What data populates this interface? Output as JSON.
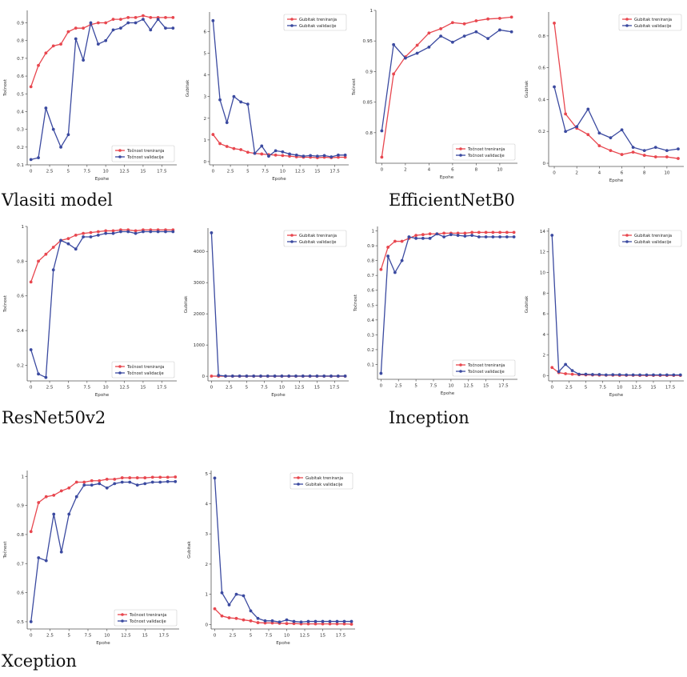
{
  "colors": {
    "train": "#e8474f",
    "val": "#3b4aa0",
    "axis": "#555555"
  },
  "models": [
    {
      "name": "Vlasiti model"
    },
    {
      "name": "EfficientNetB0"
    },
    {
      "name": "ResNet50v2"
    },
    {
      "name": "Inception"
    },
    {
      "name": "Xception"
    }
  ],
  "chart_data": [
    {
      "type": "line",
      "model": "Vlasiti model",
      "xlabel": "Epohe",
      "ylabel": "Točnost",
      "xlim": [
        -0.5,
        19.5
      ],
      "ylim": [
        0.1,
        0.97
      ],
      "xticks": [
        0,
        2.5,
        5,
        7.5,
        10,
        12.5,
        15,
        17.5
      ],
      "yticks": [
        0.1,
        0.2,
        0.3,
        0.4,
        0.5,
        0.6,
        0.7,
        0.8,
        0.9
      ],
      "grid": false,
      "legend": "lower-right",
      "x": [
        0,
        1,
        2,
        3,
        4,
        5,
        6,
        7,
        8,
        9,
        10,
        11,
        12,
        13,
        14,
        15,
        16,
        17,
        18,
        19
      ],
      "series": [
        {
          "name": "Točnost treniranja",
          "values": [
            0.54,
            0.66,
            0.73,
            0.77,
            0.78,
            0.85,
            0.87,
            0.87,
            0.89,
            0.9,
            0.9,
            0.92,
            0.92,
            0.93,
            0.93,
            0.94,
            0.93,
            0.93,
            0.93,
            0.93
          ]
        },
        {
          "name": "Točnost validacije",
          "values": [
            0.13,
            0.14,
            0.42,
            0.3,
            0.2,
            0.27,
            0.81,
            0.69,
            0.9,
            0.78,
            0.8,
            0.86,
            0.87,
            0.9,
            0.9,
            0.92,
            0.86,
            0.92,
            0.87,
            0.87
          ]
        }
      ]
    },
    {
      "type": "line",
      "model": "Vlasiti model",
      "xlabel": "Epohe",
      "ylabel": "Gubitak",
      "xlim": [
        -0.5,
        19.5
      ],
      "ylim": [
        -0.15,
        6.9
      ],
      "xticks": [
        0,
        2.5,
        5,
        7.5,
        10,
        12.5,
        15,
        17.5
      ],
      "yticks": [
        0,
        1,
        2,
        3,
        4,
        5,
        6
      ],
      "grid": false,
      "legend": "upper-right",
      "x": [
        0,
        1,
        2,
        3,
        4,
        5,
        6,
        7,
        8,
        9,
        10,
        11,
        12,
        13,
        14,
        15,
        16,
        17,
        18,
        19
      ],
      "series": [
        {
          "name": "Gubitak treniranja",
          "values": [
            1.25,
            0.83,
            0.7,
            0.6,
            0.55,
            0.43,
            0.38,
            0.35,
            0.32,
            0.3,
            0.28,
            0.25,
            0.22,
            0.2,
            0.2,
            0.18,
            0.2,
            0.18,
            0.2,
            0.2
          ]
        },
        {
          "name": "Gubitak validacije",
          "values": [
            6.5,
            2.85,
            1.8,
            3.0,
            2.75,
            2.65,
            0.38,
            0.72,
            0.25,
            0.5,
            0.45,
            0.35,
            0.3,
            0.25,
            0.28,
            0.25,
            0.28,
            0.22,
            0.3,
            0.3
          ]
        }
      ]
    },
    {
      "type": "line",
      "model": "EfficientNetB0",
      "xlabel": "Epohe",
      "ylabel": "Točnost",
      "xlim": [
        -0.5,
        11.5
      ],
      "ylim": [
        0.75,
        1.0
      ],
      "xticks": [
        0,
        2,
        4,
        6,
        8,
        10
      ],
      "yticks": [
        0.8,
        0.85,
        0.9,
        0.95,
        1.0
      ],
      "grid": false,
      "legend": "lower-right",
      "x": [
        0,
        1,
        2,
        3,
        4,
        5,
        6,
        7,
        8,
        9,
        10,
        11
      ],
      "series": [
        {
          "name": "Točnost treniranja",
          "values": [
            0.76,
            0.896,
            0.924,
            0.943,
            0.963,
            0.97,
            0.98,
            0.978,
            0.983,
            0.986,
            0.987,
            0.989
          ]
        },
        {
          "name": "Točnost validacije",
          "values": [
            0.803,
            0.944,
            0.922,
            0.93,
            0.94,
            0.958,
            0.948,
            0.958,
            0.965,
            0.954,
            0.968,
            0.965
          ]
        }
      ]
    },
    {
      "type": "line",
      "model": "EfficientNetB0",
      "xlabel": "Epohe",
      "ylabel": "Gubitak",
      "xlim": [
        -0.5,
        11.5
      ],
      "ylim": [
        -0.02,
        0.95
      ],
      "xticks": [
        0,
        2,
        4,
        6,
        8,
        10
      ],
      "yticks": [
        0,
        0.2,
        0.4,
        0.6,
        0.8
      ],
      "grid": false,
      "legend": "upper-right",
      "x": [
        0,
        1,
        2,
        3,
        4,
        5,
        6,
        7,
        8,
        9,
        10,
        11
      ],
      "series": [
        {
          "name": "Gubitak treniranja",
          "values": [
            0.88,
            0.31,
            0.22,
            0.18,
            0.11,
            0.08,
            0.055,
            0.07,
            0.05,
            0.04,
            0.04,
            0.03
          ]
        },
        {
          "name": "Gubitak validacije",
          "values": [
            0.48,
            0.2,
            0.23,
            0.34,
            0.19,
            0.16,
            0.21,
            0.1,
            0.08,
            0.1,
            0.08,
            0.09
          ]
        }
      ]
    },
    {
      "type": "line",
      "model": "ResNet50v2",
      "xlabel": "Epohe",
      "ylabel": "Točnost",
      "xlim": [
        -0.5,
        19.5
      ],
      "ylim": [
        0.11,
        1.0
      ],
      "xticks": [
        0,
        2.5,
        5,
        7.5,
        10,
        12.5,
        15,
        17.5
      ],
      "yticks": [
        0.2,
        0.4,
        0.6,
        0.8,
        1.0
      ],
      "grid": false,
      "legend": "lower-right",
      "x": [
        0,
        1,
        2,
        3,
        4,
        5,
        6,
        7,
        8,
        9,
        10,
        11,
        12,
        13,
        14,
        15,
        16,
        17,
        18,
        19
      ],
      "series": [
        {
          "name": "Točnost treniranja",
          "values": [
            0.68,
            0.8,
            0.84,
            0.88,
            0.92,
            0.93,
            0.95,
            0.96,
            0.965,
            0.97,
            0.975,
            0.975,
            0.98,
            0.98,
            0.975,
            0.98,
            0.98,
            0.98,
            0.98,
            0.98
          ]
        },
        {
          "name": "Točnost validacije",
          "values": [
            0.29,
            0.15,
            0.13,
            0.75,
            0.92,
            0.9,
            0.87,
            0.94,
            0.94,
            0.95,
            0.96,
            0.96,
            0.97,
            0.97,
            0.96,
            0.97,
            0.97,
            0.97,
            0.97,
            0.97
          ]
        }
      ]
    },
    {
      "type": "line",
      "model": "ResNet50v2",
      "xlabel": "Epohe",
      "ylabel": "Gubitak",
      "xlim": [
        -0.5,
        19.5
      ],
      "ylim": [
        -150,
        4750
      ],
      "xticks": [
        0,
        2.5,
        5,
        7.5,
        10,
        12.5,
        15,
        17.5
      ],
      "yticks": [
        0,
        1000,
        2000,
        3000,
        4000
      ],
      "grid": false,
      "legend": "upper-right",
      "x": [
        0,
        1,
        2,
        3,
        4,
        5,
        6,
        7,
        8,
        9,
        10,
        11,
        12,
        13,
        14,
        15,
        16,
        17,
        18,
        19
      ],
      "series": [
        {
          "name": "Gubitak treniranja",
          "values": [
            3,
            2,
            2,
            2,
            2,
            2,
            2,
            2,
            2,
            2,
            2,
            2,
            2,
            2,
            2,
            2,
            2,
            2,
            2,
            2
          ]
        },
        {
          "name": "Gubitak validacije",
          "values": [
            4600,
            30,
            5,
            5,
            5,
            5,
            5,
            5,
            5,
            5,
            5,
            5,
            5,
            5,
            5,
            5,
            5,
            5,
            5,
            5
          ]
        }
      ]
    },
    {
      "type": "line",
      "model": "Inception",
      "xlabel": "Epohe",
      "ylabel": "Točnost",
      "xlim": [
        -0.5,
        19.5
      ],
      "ylim": [
        0.0,
        1.03
      ],
      "xticks": [
        0,
        2.5,
        5,
        7.5,
        10,
        12.5,
        15,
        17.5
      ],
      "yticks": [
        0.1,
        0.2,
        0.3,
        0.4,
        0.5,
        0.6,
        0.7,
        0.8,
        0.9,
        1.0
      ],
      "grid": false,
      "legend": "lower-right",
      "x": [
        0,
        1,
        2,
        3,
        4,
        5,
        6,
        7,
        8,
        9,
        10,
        11,
        12,
        13,
        14,
        15,
        16,
        17,
        18,
        19
      ],
      "series": [
        {
          "name": "Točnost treniranja",
          "values": [
            0.74,
            0.89,
            0.93,
            0.93,
            0.95,
            0.97,
            0.975,
            0.98,
            0.98,
            0.985,
            0.985,
            0.985,
            0.985,
            0.99,
            0.99,
            0.99,
            0.99,
            0.99,
            0.99,
            0.99
          ]
        },
        {
          "name": "Točnost validacije",
          "values": [
            0.04,
            0.83,
            0.72,
            0.8,
            0.96,
            0.95,
            0.95,
            0.95,
            0.98,
            0.96,
            0.975,
            0.97,
            0.965,
            0.97,
            0.96,
            0.96,
            0.96,
            0.96,
            0.96,
            0.96
          ]
        }
      ]
    },
    {
      "type": "line",
      "model": "Inception",
      "xlabel": "Epohe",
      "ylabel": "Gubitak",
      "xlim": [
        -0.5,
        19.5
      ],
      "ylim": [
        -0.5,
        14.3
      ],
      "xticks": [
        0,
        2.5,
        5,
        7.5,
        10,
        12.5,
        15,
        17.5
      ],
      "yticks": [
        0,
        2,
        4,
        6,
        8,
        10,
        12,
        14
      ],
      "grid": false,
      "legend": "upper-right",
      "x": [
        0,
        1,
        2,
        3,
        4,
        5,
        6,
        7,
        8,
        9,
        10,
        11,
        12,
        13,
        14,
        15,
        16,
        17,
        18,
        19
      ],
      "series": [
        {
          "name": "Gubitak treniranja",
          "values": [
            0.8,
            0.3,
            0.2,
            0.15,
            0.1,
            0.08,
            0.07,
            0.06,
            0.05,
            0.05,
            0.04,
            0.04,
            0.04,
            0.03,
            0.03,
            0.03,
            0.03,
            0.03,
            0.03,
            0.03
          ]
        },
        {
          "name": "Gubitak validacije",
          "values": [
            13.6,
            0.4,
            1.1,
            0.5,
            0.15,
            0.15,
            0.12,
            0.12,
            0.08,
            0.1,
            0.1,
            0.08,
            0.08,
            0.08,
            0.08,
            0.08,
            0.08,
            0.08,
            0.08,
            0.08
          ]
        }
      ]
    },
    {
      "type": "line",
      "model": "Xception",
      "xlabel": "Epohe",
      "ylabel": "Točnost",
      "xlim": [
        -0.5,
        19.5
      ],
      "ylim": [
        0.475,
        1.02
      ],
      "xticks": [
        0,
        2.5,
        5,
        7.5,
        10,
        12.5,
        15,
        17.5
      ],
      "yticks": [
        0.5,
        0.6,
        0.7,
        0.8,
        0.9,
        1.0
      ],
      "grid": false,
      "legend": "lower-right",
      "x": [
        0,
        1,
        2,
        3,
        4,
        5,
        6,
        7,
        8,
        9,
        10,
        11,
        12,
        13,
        14,
        15,
        16,
        17,
        18,
        19
      ],
      "series": [
        {
          "name": "Točnost treniranja",
          "values": [
            0.81,
            0.91,
            0.93,
            0.935,
            0.95,
            0.96,
            0.98,
            0.98,
            0.985,
            0.985,
            0.99,
            0.99,
            0.995,
            0.995,
            0.995,
            0.995,
            0.997,
            0.997,
            0.997,
            0.998
          ]
        },
        {
          "name": "Točnost validacije",
          "values": [
            0.5,
            0.72,
            0.71,
            0.87,
            0.74,
            0.87,
            0.93,
            0.97,
            0.97,
            0.975,
            0.96,
            0.975,
            0.98,
            0.98,
            0.97,
            0.975,
            0.98,
            0.98,
            0.982,
            0.982
          ]
        }
      ]
    },
    {
      "type": "line",
      "model": "Xception",
      "xlabel": "Epohe",
      "ylabel": "Gubitak",
      "xlim": [
        -0.5,
        19.5
      ],
      "ylim": [
        -0.15,
        5.1
      ],
      "xticks": [
        0,
        2.5,
        5,
        7.5,
        10,
        12.5,
        15,
        17.5
      ],
      "yticks": [
        0,
        1,
        2,
        3,
        4,
        5
      ],
      "grid": false,
      "legend": "upper-right",
      "x": [
        0,
        1,
        2,
        3,
        4,
        5,
        6,
        7,
        8,
        9,
        10,
        11,
        12,
        13,
        14,
        15,
        16,
        17,
        18,
        19
      ],
      "series": [
        {
          "name": "Gubitak treniranja",
          "values": [
            0.52,
            0.28,
            0.22,
            0.2,
            0.15,
            0.12,
            0.06,
            0.05,
            0.05,
            0.04,
            0.03,
            0.03,
            0.02,
            0.02,
            0.02,
            0.02,
            0.02,
            0.02,
            0.02,
            0.01
          ]
        },
        {
          "name": "Gubitak validacije",
          "values": [
            4.85,
            1.05,
            0.65,
            1.0,
            0.95,
            0.45,
            0.2,
            0.12,
            0.12,
            0.08,
            0.15,
            0.1,
            0.08,
            0.1,
            0.1,
            0.1,
            0.1,
            0.1,
            0.1,
            0.1
          ]
        }
      ]
    }
  ]
}
